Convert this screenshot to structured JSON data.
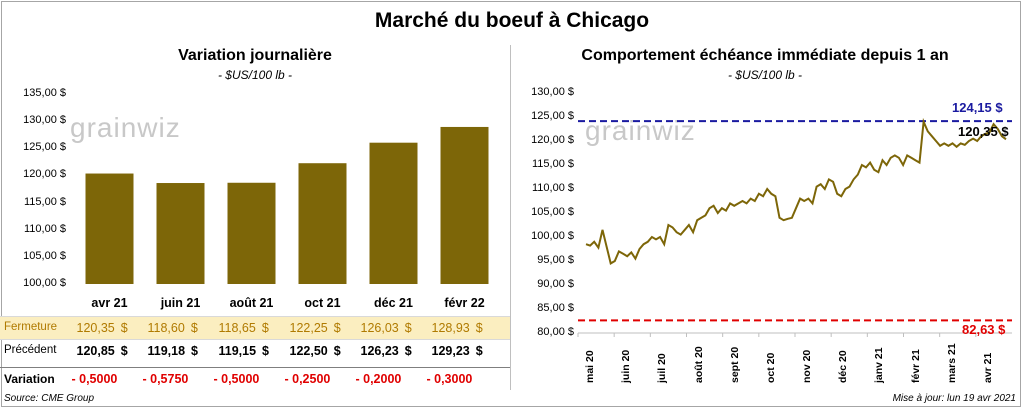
{
  "header": {
    "title": "Marché du boeuf à Chicago"
  },
  "left": {
    "title": "Variation  journalière",
    "subtitle": "- $US/100 lb -"
  },
  "right": {
    "title": "Comportement  échéance immédiate depuis 1 an",
    "subtitle": "- $US/100 lb -"
  },
  "watermark": "grainwiz",
  "footer": {
    "source": "Source: CME Group",
    "update": "Mise à jour: lun 19 avr 2021"
  },
  "colors": {
    "bar": "#7d6608",
    "line": "#7d6608",
    "blue": "#1a1aa0",
    "red": "#e00000",
    "highlight": "#fbeec0"
  },
  "chart_data": [
    {
      "type": "bar",
      "categories": [
        "avr 21",
        "juin 21",
        "août 21",
        "oct 21",
        "déc 21",
        "févr 22"
      ],
      "values": [
        120.35,
        118.6,
        118.65,
        122.25,
        126.03,
        128.93
      ],
      "ylim": [
        100,
        135
      ],
      "yticks": [
        "135,00 $",
        "130,00 $",
        "125,00 $",
        "120,00 $",
        "115,00 $",
        "110,00 $",
        "105,00 $",
        "100,00 $"
      ],
      "table": {
        "rows": [
          {
            "label": "Fermeture",
            "cells": [
              "120,35",
              "118,60",
              "118,65",
              "122,25",
              "126,03",
              "128,93"
            ],
            "unit": "$"
          },
          {
            "label": "Précédent",
            "cells": [
              "120,85",
              "119,18",
              "119,15",
              "122,50",
              "126,23",
              "129,23"
            ],
            "unit": "$"
          },
          {
            "label": "Variation",
            "cells": [
              "- 0,5000",
              "- 0,5750",
              "- 0,5000",
              "- 0,2500",
              "- 0,2000",
              "- 0,3000"
            ],
            "unit": ""
          }
        ]
      }
    },
    {
      "type": "line",
      "ylim": [
        80,
        130
      ],
      "yticks": [
        "130,00 $",
        "125,00 $",
        "120,00 $",
        "115,00 $",
        "110,00 $",
        "105,00 $",
        "100,00 $",
        "95,00 $",
        "90,00 $",
        "85,00 $",
        "80,00 $"
      ],
      "xticks": [
        "mai 20",
        "juin 20",
        "juil 20",
        "août 20",
        "sept 20",
        "oct 20",
        "nov 20",
        "déc 20",
        "janv 21",
        "févr 21",
        "mars 21",
        "avr 21"
      ],
      "series": [
        {
          "values": [
            98.5,
            98.2,
            99,
            97.8,
            101.5,
            98,
            94.5,
            95,
            97,
            96.5,
            96,
            96.8,
            95.5,
            97.5,
            98.5,
            99,
            100,
            99.5,
            100,
            98.5,
            102.5,
            102,
            101,
            100.5,
            101.5,
            102.5,
            101,
            103.5,
            104,
            104.5,
            106,
            106.5,
            105,
            106,
            105.5,
            107,
            106.5,
            107,
            107.5,
            107,
            108,
            107.5,
            109,
            108.5,
            110,
            109,
            108.5,
            104,
            103.5,
            103.8,
            104,
            106,
            108,
            107.5,
            108,
            107,
            110.5,
            111,
            110,
            112,
            111.5,
            109,
            108.5,
            110,
            110.5,
            112,
            113,
            115,
            114.5,
            115.5,
            114,
            113.5,
            116,
            115,
            116.5,
            117,
            116.5,
            115,
            117,
            116.5,
            116,
            115.5,
            124,
            122,
            121,
            120,
            119,
            119.5,
            119,
            119.5,
            118.8,
            119.5,
            119.2,
            120,
            120.5,
            120,
            121,
            121.5,
            121.8,
            123.5,
            122.5,
            121,
            120.35
          ]
        }
      ],
      "hlines": [
        {
          "value": 124.15,
          "label": "124,15 $",
          "color": "#1a1aa0"
        },
        {
          "value": 82.63,
          "label": "82,63 $",
          "color": "#e00000"
        }
      ],
      "last_label": "120,35 $"
    }
  ]
}
